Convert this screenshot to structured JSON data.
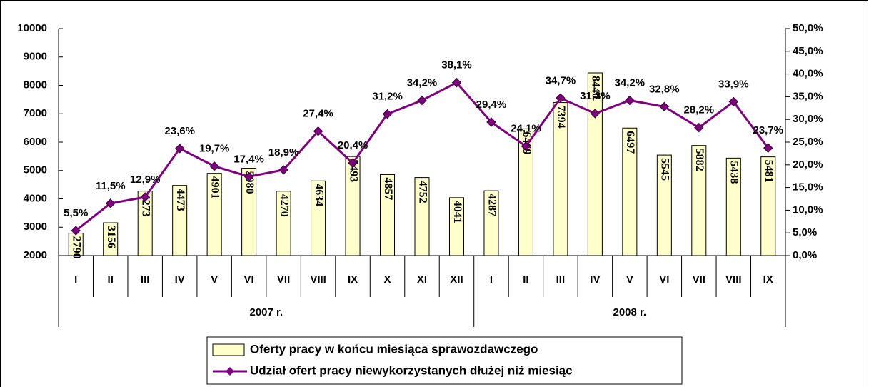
{
  "chart_data": {
    "type": "bar-line",
    "categories": [
      "I",
      "II",
      "III",
      "IV",
      "V",
      "VI",
      "VII",
      "VIII",
      "IX",
      "X",
      "XI",
      "XII",
      "I",
      "II",
      "III",
      "IV",
      "V",
      "VI",
      "VII",
      "VIII",
      "IX"
    ],
    "groups": [
      "2007 r.",
      "2008 r."
    ],
    "series": [
      {
        "name": "Oferty pracy w końcu miesiąca sprawozdawczego",
        "color": "#ffffcc",
        "type": "bar",
        "values": [
          2790,
          3156,
          4273,
          4473,
          4901,
          5080,
          4270,
          4634,
          5493,
          4857,
          4752,
          4041,
          4287,
          6469,
          7394,
          8440,
          6497,
          5545,
          5882,
          5438,
          5481
        ]
      },
      {
        "name": "Udział ofert pracy niewykorzystanych dłużej niż miesiąc",
        "color": "#800080",
        "type": "line",
        "axis": "y2",
        "values": [
          5.5,
          11.5,
          12.9,
          23.6,
          19.7,
          17.4,
          18.9,
          27.4,
          20.4,
          31.2,
          34.2,
          38.1,
          29.4,
          24.1,
          34.7,
          31.3,
          34.2,
          32.8,
          28.2,
          33.9,
          23.7
        ],
        "value_labels": [
          "5,5%",
          "11,5%",
          "12,9%",
          "23,6%",
          "19,7%",
          "17,4%",
          "18,9%",
          "27,4%",
          "20,4%",
          "31,2%",
          "34,2%",
          "38,1%",
          "29,4%",
          "24,1%",
          "34,7%",
          "31,3%",
          "34,2%",
          "32,8%",
          "28,2%",
          "33,9%",
          "23,7%"
        ]
      }
    ],
    "ylim": [
      2000,
      10000
    ],
    "yticks": [
      2000,
      3000,
      4000,
      5000,
      6000,
      7000,
      8000,
      9000,
      10000
    ],
    "y2lim": [
      0,
      50
    ],
    "y2ticks": [
      {
        "value": 0,
        "label": "0,0%"
      },
      {
        "value": 5,
        "label": "5,0%"
      },
      {
        "value": 10,
        "label": "10,0%"
      },
      {
        "value": 15,
        "label": "15,0%"
      },
      {
        "value": 20,
        "label": "20,0%"
      },
      {
        "value": 25,
        "label": "25,0%"
      },
      {
        "value": 30,
        "label": "30,0%"
      },
      {
        "value": 35,
        "label": "35,0%"
      },
      {
        "value": 40,
        "label": "40,0%"
      },
      {
        "value": 45,
        "label": "45,0%"
      },
      {
        "value": 50,
        "label": "50,0%"
      }
    ],
    "legend": "bottom"
  }
}
